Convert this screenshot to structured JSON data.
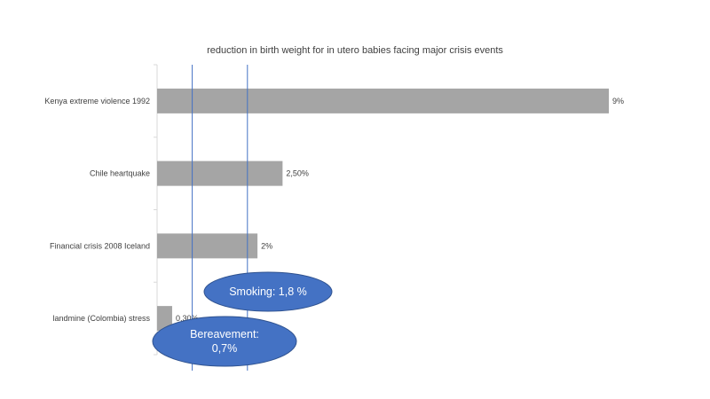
{
  "chart_data": {
    "type": "bar",
    "orientation": "horizontal",
    "title": "reduction in birth weight for in utero babies facing major crisis events",
    "categories": [
      "Kenya extreme violence 1992",
      "Chile heartquake",
      "Financial crisis 2008 Iceland",
      "landmine (Colombia) stress"
    ],
    "values": [
      9,
      2.5,
      2,
      0.3
    ],
    "data_labels": [
      "9%",
      "2,50%",
      "2%",
      "0,30%"
    ],
    "value_unit": "%",
    "xlim": [
      0,
      9
    ],
    "grid": false,
    "legend": "none",
    "bar_color": "#a5a5a5",
    "reference_lines": [
      {
        "value": 0.7,
        "label_lines": [
          "Bereavement:",
          "0,7%"
        ]
      },
      {
        "value": 1.8,
        "label_lines": [
          "Smoking: 1,8 %"
        ]
      }
    ],
    "reference_line_color": "#4472c4",
    "callout_color": "#4472c4",
    "callout_border": "#2f528f"
  }
}
